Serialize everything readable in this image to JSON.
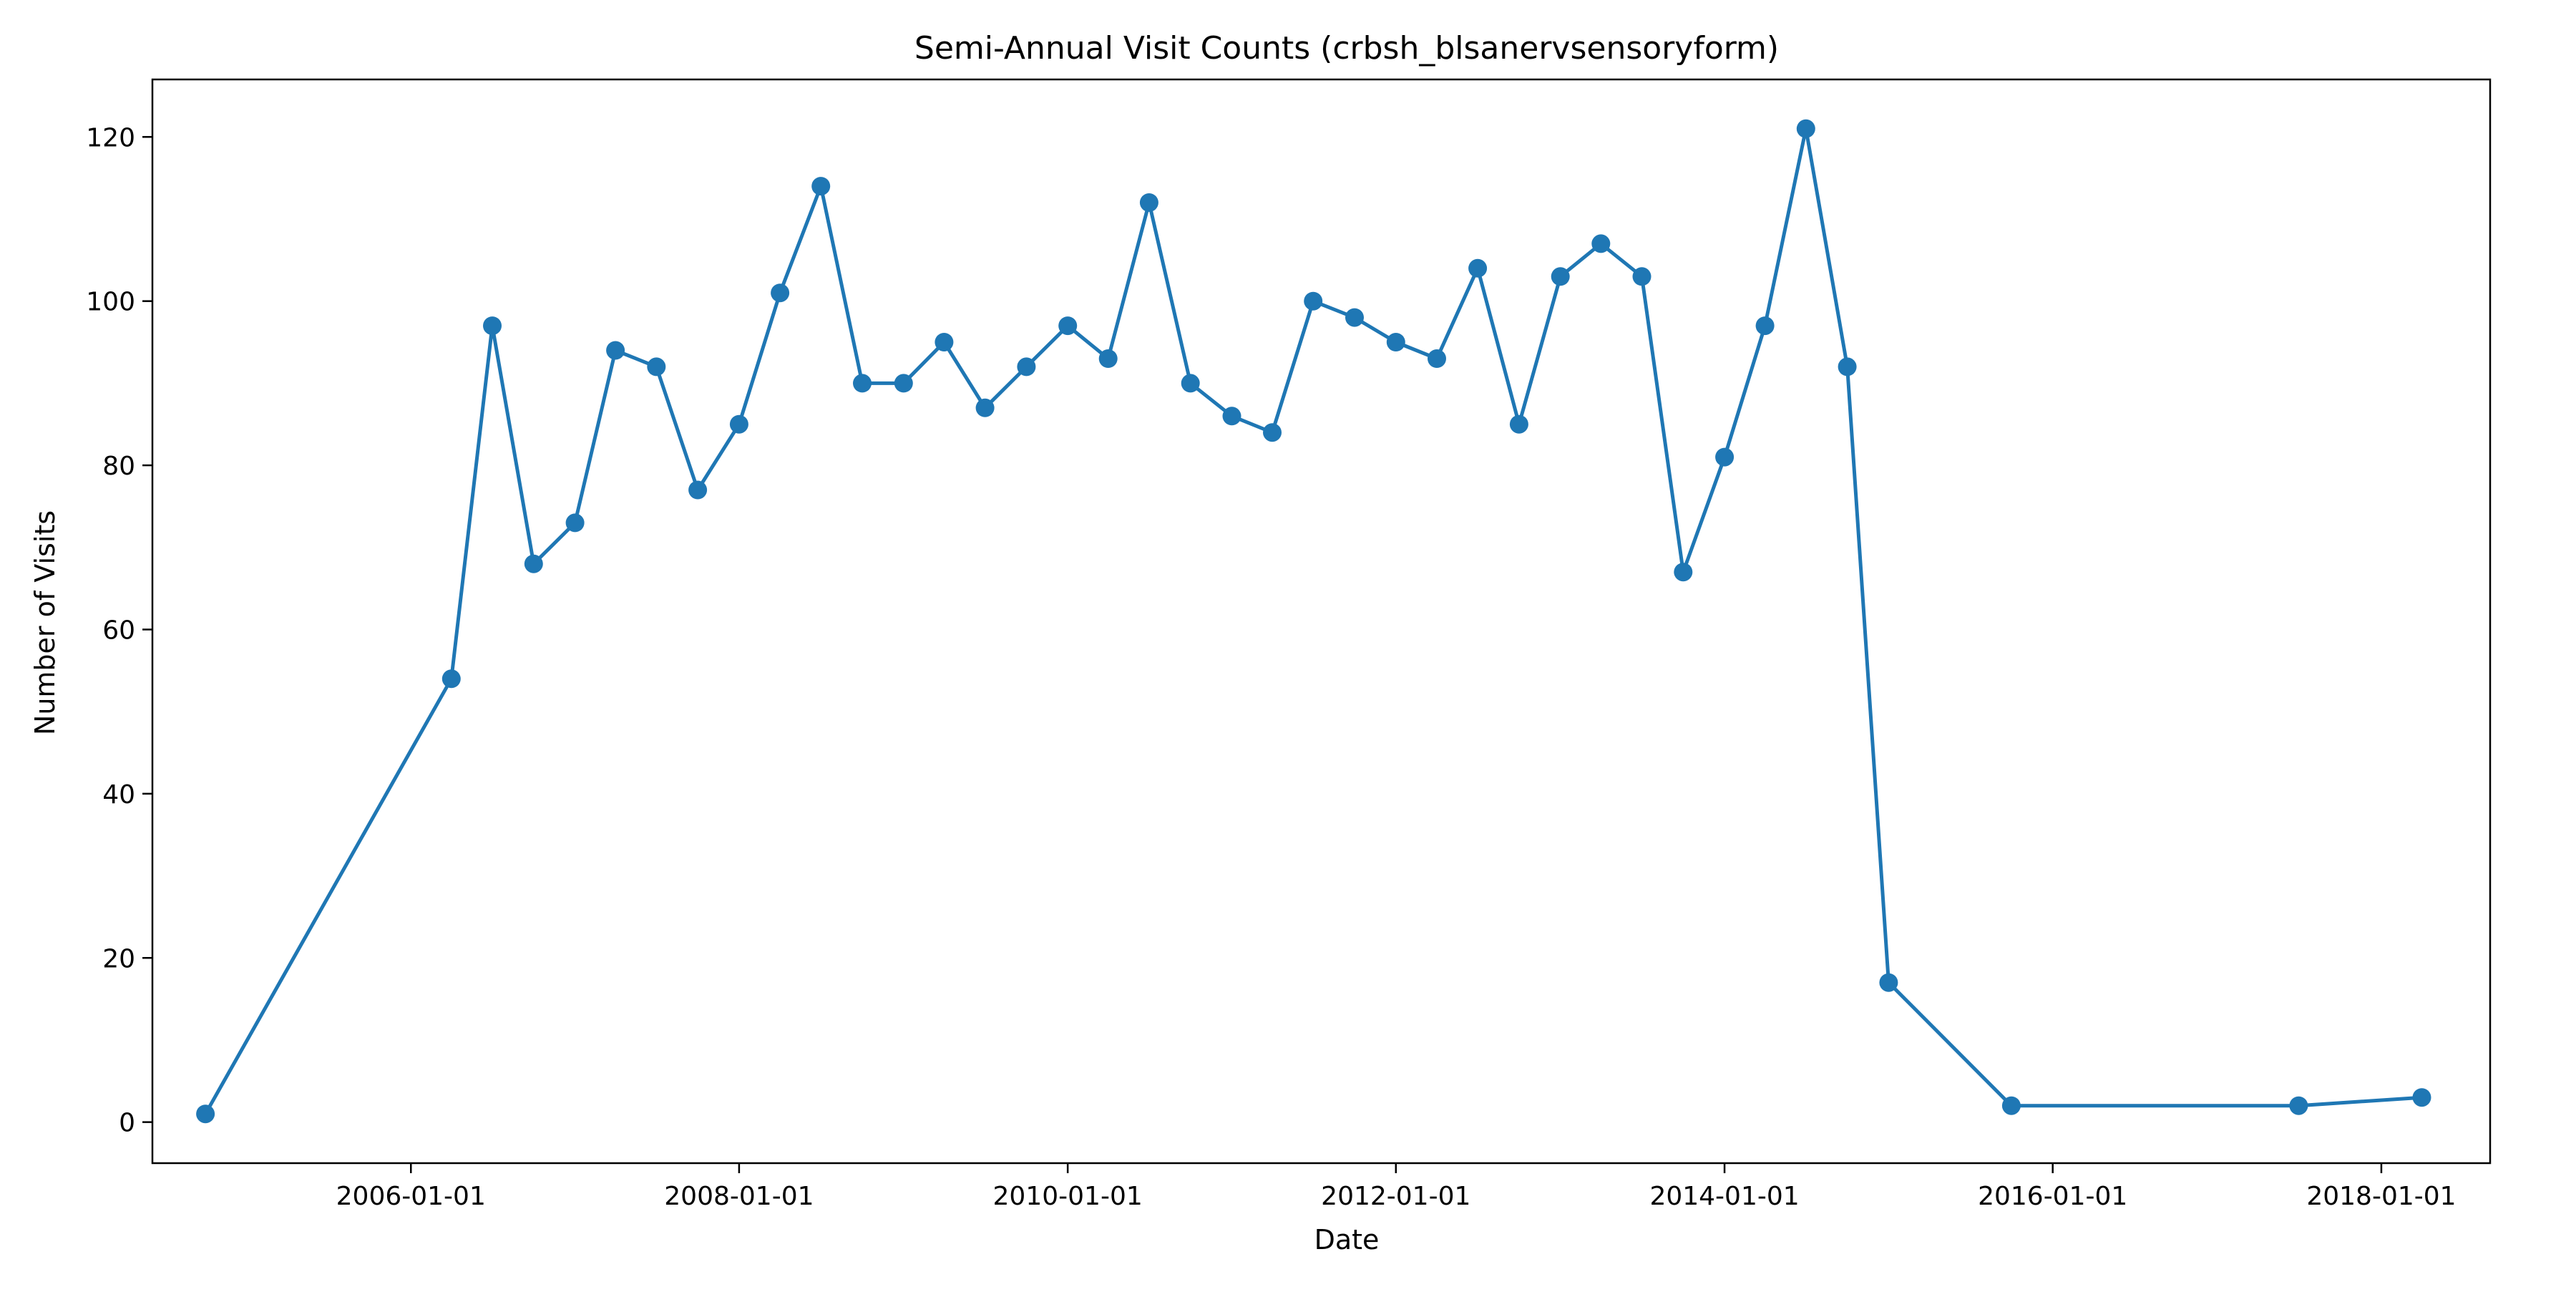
{
  "chart_data": {
    "type": "line",
    "title": "Semi-Annual Visit Counts (crbsh_blsanervsensoryform)",
    "xlabel": "Date",
    "ylabel": "Number of Visits",
    "x_axis_type": "date",
    "xlim": [
      "2004-06-05",
      "2018-08-31"
    ],
    "ylim": [
      -5,
      127
    ],
    "x_ticks": [
      "2006-01-01",
      "2008-01-01",
      "2010-01-01",
      "2012-01-01",
      "2014-01-01",
      "2016-01-01",
      "2018-01-01"
    ],
    "y_ticks": [
      0,
      20,
      40,
      60,
      80,
      100,
      120
    ],
    "grid": false,
    "legend": "none",
    "series": [
      {
        "color": "#1f77b4",
        "marker": "circle",
        "points": [
          {
            "x": "2004-10-01",
            "y": 1
          },
          {
            "x": "2006-04-01",
            "y": 54
          },
          {
            "x": "2006-07-01",
            "y": 97
          },
          {
            "x": "2006-10-01",
            "y": 68
          },
          {
            "x": "2007-01-01",
            "y": 73
          },
          {
            "x": "2007-04-01",
            "y": 94
          },
          {
            "x": "2007-07-01",
            "y": 92
          },
          {
            "x": "2007-10-01",
            "y": 77
          },
          {
            "x": "2008-01-01",
            "y": 85
          },
          {
            "x": "2008-04-01",
            "y": 101
          },
          {
            "x": "2008-07-01",
            "y": 114
          },
          {
            "x": "2008-10-01",
            "y": 90
          },
          {
            "x": "2009-01-01",
            "y": 90
          },
          {
            "x": "2009-04-01",
            "y": 95
          },
          {
            "x": "2009-07-01",
            "y": 87
          },
          {
            "x": "2009-10-01",
            "y": 92
          },
          {
            "x": "2010-01-01",
            "y": 97
          },
          {
            "x": "2010-04-01",
            "y": 93
          },
          {
            "x": "2010-07-01",
            "y": 112
          },
          {
            "x": "2010-10-01",
            "y": 90
          },
          {
            "x": "2011-01-01",
            "y": 86
          },
          {
            "x": "2011-04-01",
            "y": 84
          },
          {
            "x": "2011-07-01",
            "y": 100
          },
          {
            "x": "2011-10-01",
            "y": 98
          },
          {
            "x": "2012-01-01",
            "y": 95
          },
          {
            "x": "2012-04-01",
            "y": 93
          },
          {
            "x": "2012-07-01",
            "y": 104
          },
          {
            "x": "2012-10-01",
            "y": 85
          },
          {
            "x": "2013-01-01",
            "y": 103
          },
          {
            "x": "2013-04-01",
            "y": 107
          },
          {
            "x": "2013-07-01",
            "y": 103
          },
          {
            "x": "2013-10-01",
            "y": 67
          },
          {
            "x": "2014-01-01",
            "y": 81
          },
          {
            "x": "2014-04-01",
            "y": 97
          },
          {
            "x": "2014-07-01",
            "y": 121
          },
          {
            "x": "2014-10-01",
            "y": 92
          },
          {
            "x": "2015-01-01",
            "y": 17
          },
          {
            "x": "2015-10-01",
            "y": 2
          },
          {
            "x": "2017-07-01",
            "y": 2
          },
          {
            "x": "2018-04-01",
            "y": 3
          }
        ]
      }
    ]
  }
}
